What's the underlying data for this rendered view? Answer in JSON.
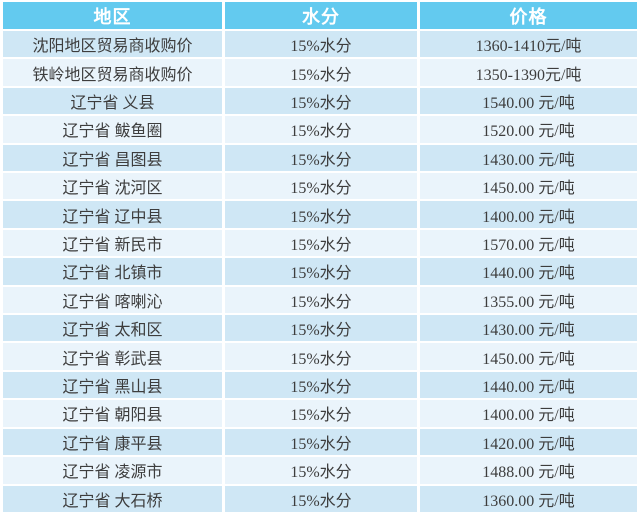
{
  "chart_data": {
    "type": "table",
    "columns": [
      "地区",
      "水分",
      "价格"
    ],
    "rows": [
      [
        "沈阳地区贸易商收购价",
        "15%水分",
        "1360-1410元/吨"
      ],
      [
        "铁岭地区贸易商收购价",
        "15%水分",
        "1350-1390元/吨"
      ],
      [
        "辽宁省 义县",
        "15%水分",
        "1540.00 元/吨"
      ],
      [
        "辽宁省 鲅鱼圈",
        "15%水分",
        "1520.00 元/吨"
      ],
      [
        "辽宁省 昌图县",
        "15%水分",
        "1430.00 元/吨"
      ],
      [
        "辽宁省 沈河区",
        "15%水分",
        "1450.00 元/吨"
      ],
      [
        "辽宁省 辽中县",
        "15%水分",
        "1400.00 元/吨"
      ],
      [
        "辽宁省 新民市",
        "15%水分",
        "1570.00 元/吨"
      ],
      [
        "辽宁省 北镇市",
        "15%水分",
        "1440.00 元/吨"
      ],
      [
        "辽宁省 喀喇沁",
        "15%水分",
        "1355.00 元/吨"
      ],
      [
        "辽宁省 太和区",
        "15%水分",
        "1430.00 元/吨"
      ],
      [
        "辽宁省 彰武县",
        "15%水分",
        "1450.00 元/吨"
      ],
      [
        "辽宁省 黑山县",
        "15%水分",
        "1440.00 元/吨"
      ],
      [
        "辽宁省 朝阳县",
        "15%水分",
        "1400.00 元/吨"
      ],
      [
        "辽宁省 康平县",
        "15%水分",
        "1420.00 元/吨"
      ],
      [
        "辽宁省 凌源市",
        "15%水分",
        "1488.00 元/吨"
      ],
      [
        "辽宁省 大石桥",
        "15%水分",
        "1360.00 元/吨"
      ]
    ]
  },
  "colors": {
    "header_bg": "#63caef",
    "header_text": "#ffffff",
    "row_odd_bg": "#cfe7f5",
    "row_even_bg": "#eaf4fb",
    "grid": "#ffffff",
    "text": "#3d3d3d"
  }
}
